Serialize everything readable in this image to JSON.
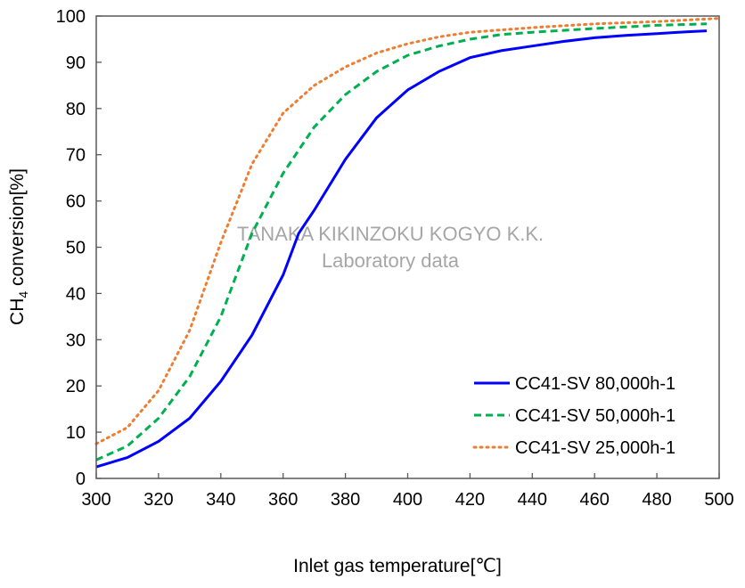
{
  "chart_data": {
    "type": "line",
    "title": "",
    "xlabel": "Inlet gas temperature[℃]",
    "ylabel_main": "CH",
    "ylabel_sub": "4",
    "ylabel_rest": " conversion[%]",
    "xlim": [
      300,
      500
    ],
    "ylim": [
      0,
      100
    ],
    "xticks": [
      300,
      320,
      340,
      360,
      380,
      400,
      420,
      440,
      460,
      480,
      500
    ],
    "yticks": [
      0,
      10,
      20,
      30,
      40,
      50,
      60,
      70,
      80,
      90,
      100
    ],
    "grid": false,
    "legend_position": "bottom-right",
    "annotations": [
      "TANAKA KIKINZOKU KOGYO K.K.",
      "Laboratory data"
    ],
    "series": [
      {
        "name": "CC41-SV 80,000h-1",
        "color": "#0000ff",
        "style": "solid",
        "x": [
          300,
          310,
          320,
          330,
          340,
          350,
          360,
          365,
          370,
          380,
          390,
          400,
          410,
          420,
          430,
          440,
          450,
          460,
          470,
          480,
          490,
          496
        ],
        "y": [
          2.5,
          4.5,
          8,
          13,
          21,
          31,
          44,
          53,
          58,
          69,
          78,
          84,
          88,
          91,
          92.5,
          93.5,
          94.5,
          95.3,
          95.8,
          96.2,
          96.6,
          96.8
        ]
      },
      {
        "name": "CC41-SV 50,000h-1",
        "color": "#00b050",
        "style": "dashed",
        "x": [
          300,
          310,
          320,
          330,
          340,
          350,
          360,
          370,
          380,
          390,
          400,
          410,
          420,
          430,
          440,
          460,
          480,
          496
        ],
        "y": [
          4,
          7,
          13,
          22,
          35,
          53,
          66,
          76,
          83,
          88,
          91.5,
          93.5,
          95,
          96,
          96.5,
          97.3,
          98,
          98.3
        ]
      },
      {
        "name": "CC41-SV 25,000h-1",
        "color": "#ed7d31",
        "style": "dotted",
        "x": [
          300,
          310,
          320,
          330,
          340,
          350,
          360,
          370,
          380,
          390,
          400,
          410,
          420,
          440,
          460,
          480,
          500
        ],
        "y": [
          7.5,
          11,
          19,
          32,
          51,
          68,
          79,
          85,
          89,
          92,
          94,
          95.5,
          96.5,
          97.5,
          98.3,
          98.8,
          99.5
        ]
      }
    ]
  }
}
